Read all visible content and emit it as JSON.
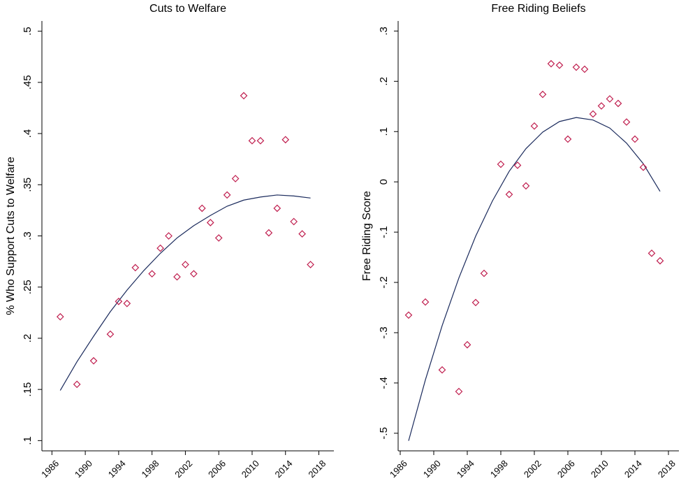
{
  "chart_data": [
    {
      "type": "scatter",
      "title": "Cuts to Welfare",
      "ylabel": "% Who Support Cuts to Welfare",
      "xlim": [
        1984.8,
        2019.8
      ],
      "xticks": [
        1986,
        1990,
        1994,
        1998,
        2002,
        2006,
        2010,
        2014,
        2018
      ],
      "ylim": [
        0.09,
        0.51
      ],
      "yticks": [
        {
          "value": 0.1,
          "label": ".1"
        },
        {
          "value": 0.15,
          "label": ".15"
        },
        {
          "value": 0.2,
          "label": ".2"
        },
        {
          "value": 0.25,
          "label": ".25"
        },
        {
          "value": 0.3,
          "label": ".3"
        },
        {
          "value": 0.35,
          "label": ".35"
        },
        {
          "value": 0.4,
          "label": ".4"
        },
        {
          "value": 0.45,
          "label": ".45"
        },
        {
          "value": 0.5,
          "label": ".5"
        }
      ],
      "color": "#c01f4f",
      "x": [
        1987,
        1989,
        1991,
        1993,
        1994,
        1995,
        1996,
        1998,
        1999,
        2000,
        2001,
        2002,
        2003,
        2004,
        2005,
        2006,
        2007,
        2008,
        2009,
        2010,
        2011,
        2012,
        2013,
        2014,
        2015,
        2016,
        2017
      ],
      "values": [
        0.221,
        0.155,
        0.178,
        0.204,
        0.236,
        0.234,
        0.269,
        0.263,
        0.288,
        0.3,
        0.26,
        0.272,
        0.263,
        0.327,
        0.313,
        0.298,
        0.34,
        0.356,
        0.437,
        0.393,
        0.393,
        0.303,
        0.327,
        0.394,
        0.314,
        0.302,
        0.272
      ],
      "fit": {
        "color": "#1a2a5c",
        "x": [
          1987,
          1989,
          1991,
          1993,
          1995,
          1997,
          1999,
          2001,
          2003,
          2005,
          2007,
          2009,
          2011,
          2013,
          2015,
          2017
        ],
        "values": [
          0.149,
          0.177,
          0.202,
          0.226,
          0.247,
          0.266,
          0.283,
          0.298,
          0.31,
          0.32,
          0.329,
          0.335,
          0.338,
          0.34,
          0.339,
          0.337
        ]
      }
    },
    {
      "type": "scatter",
      "title": "Free Riding Beliefs",
      "ylabel": "Free Riding Score",
      "xlim": [
        1985.75,
        2019.25
      ],
      "xticks": [
        1986,
        1990,
        1994,
        1998,
        2002,
        2006,
        2010,
        2014,
        2018
      ],
      "ylim": [
        -0.535,
        0.32
      ],
      "yticks": [
        {
          "value": -0.5,
          "label": "-.5"
        },
        {
          "value": -0.4,
          "label": "-.4"
        },
        {
          "value": -0.3,
          "label": "-.3"
        },
        {
          "value": -0.2,
          "label": "-.2"
        },
        {
          "value": -0.1,
          "label": "-.1"
        },
        0,
        {
          "value": 0.1,
          "label": ".1"
        },
        {
          "value": 0.2,
          "label": ".2"
        },
        {
          "value": 0.3,
          "label": ".3"
        }
      ],
      "color": "#c01f4f",
      "x": [
        1987,
        1989,
        1991,
        1993,
        1994,
        1995,
        1996,
        1998,
        1999,
        2000,
        2001,
        2002,
        2003,
        2004,
        2005,
        2006,
        2007,
        2008,
        2009,
        2010,
        2011,
        2012,
        2013,
        2014,
        2015,
        2016,
        2017
      ],
      "values": [
        -0.265,
        -0.239,
        -0.374,
        -0.417,
        -0.324,
        -0.24,
        -0.182,
        0.035,
        -0.025,
        0.033,
        -0.008,
        0.111,
        0.174,
        0.235,
        0.232,
        0.085,
        0.228,
        0.224,
        0.135,
        0.151,
        0.165,
        0.156,
        0.119,
        0.085,
        0.029,
        -0.142,
        -0.157
      ],
      "fit": {
        "color": "#1a2a5c",
        "x": [
          1987,
          1989,
          1991,
          1993,
          1995,
          1997,
          1999,
          2001,
          2003,
          2005,
          2007,
          2009,
          2011,
          2013,
          2015,
          2017
        ],
        "values": [
          -0.515,
          -0.394,
          -0.286,
          -0.191,
          -0.108,
          -0.038,
          0.021,
          0.066,
          0.099,
          0.12,
          0.128,
          0.123,
          0.107,
          0.077,
          0.036,
          -0.019
        ]
      }
    }
  ]
}
